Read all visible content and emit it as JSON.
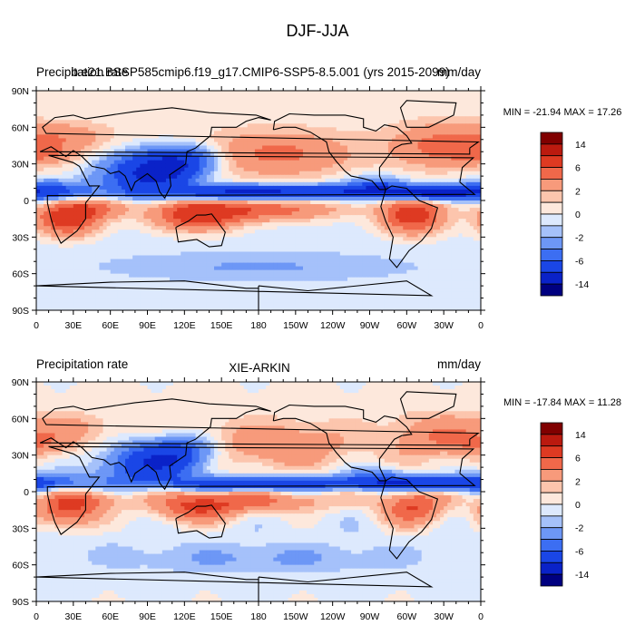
{
  "chart_data": {
    "type": "heatmap",
    "title": "DJF-JJA",
    "panels": [
      {
        "left_label": "Precipitation rate",
        "center_label": "b.e21.BSSP585cmip6.f19_g17.CMIP6-SSP5-8.5.001 (yrs 2015-2099)",
        "right_label": "mm/day",
        "stats": "MIN = -21.94 MAX =  17.26",
        "min": -21.94,
        "max": 17.26,
        "xticks": [
          "0",
          "30E",
          "60E",
          "90E",
          "120E",
          "150E",
          "180",
          "150W",
          "120W",
          "90W",
          "60W",
          "30W",
          "0"
        ],
        "yticks": [
          "90N",
          "60N",
          "30N",
          "0",
          "30S",
          "60S",
          "90S"
        ],
        "xlim": [
          0,
          360
        ],
        "ylim": [
          -90,
          90
        ]
      },
      {
        "left_label": "Precipitation rate",
        "center_label": "XIE-ARKIN",
        "right_label": "mm/day",
        "stats": "MIN = -17.84 MAX =  11.28",
        "min": -17.84,
        "max": 11.28,
        "xticks": [
          "0",
          "30E",
          "60E",
          "90E",
          "120E",
          "150E",
          "180",
          "150W",
          "120W",
          "90W",
          "60W",
          "30W",
          "0"
        ],
        "yticks": [
          "90N",
          "60N",
          "30N",
          "0",
          "30S",
          "60S",
          "90S"
        ],
        "xlim": [
          0,
          360
        ],
        "ylim": [
          -90,
          90
        ]
      }
    ],
    "colorbar": {
      "levels": [
        -14,
        -10,
        -6,
        -4,
        -2,
        -1,
        0,
        1,
        2,
        4,
        6,
        10,
        14
      ],
      "labels": [
        "14",
        "6",
        "2",
        "0",
        "-2",
        "-6",
        "-14"
      ],
      "colors": [
        "#000080",
        "#0a22c8",
        "#1a46e6",
        "#3c6ef2",
        "#6d97f6",
        "#a5c1fa",
        "#dde9fd",
        "#fde8dc",
        "#fcc5ad",
        "#f79a7b",
        "#f0684a",
        "#de3a22",
        "#bb1a0f",
        "#800000"
      ]
    }
  }
}
